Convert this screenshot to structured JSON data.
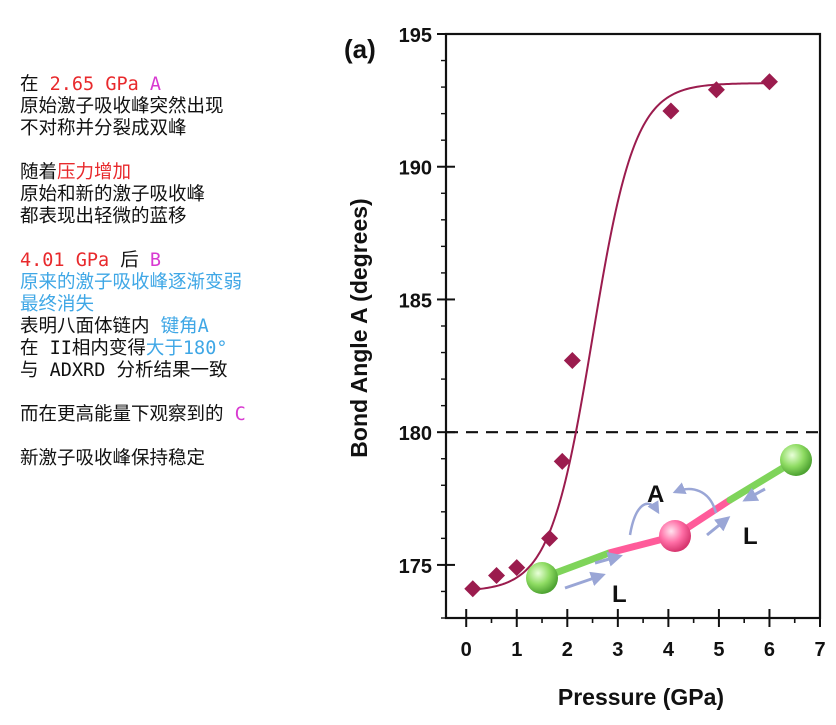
{
  "notes": {
    "p1": {
      "l1": {
        "pre": "在 ",
        "value": "2.65 GPa",
        "space": " ",
        "mark": "A"
      },
      "l2": "原始激子吸收峰突然出现",
      "l3": "不对称并分裂成双峰"
    },
    "p2": {
      "l1_pre": "随着",
      "l1_hl": "压力增加",
      "l2": "原始和新的激子吸收峰",
      "l3": "都表现出轻微的蓝移"
    },
    "p3": {
      "l1": {
        "value": "4.01 GPa",
        "mid": " 后 ",
        "mark": "B"
      },
      "l2": "原来的激子吸收峰逐渐变弱",
      "l3": "最终消失",
      "l4": {
        "pre": "表明八面体链内 ",
        "hl": "键角A"
      },
      "l5": {
        "pre": "在 II相内变得",
        "hl": "大于180°"
      },
      "l6": "与 ADXRD 分析结果一致"
    },
    "p4": {
      "l1_pre": "而在更高能量下观察到的 ",
      "mark": "C"
    },
    "p5": {
      "l1": "新激子吸收峰保持稳定"
    }
  },
  "colors": {
    "red": "#e8292c",
    "magenta": "#d83ad1",
    "blue": "#3fa7e6",
    "curve": "#9b1c4e",
    "marker": "#9b1c4e"
  },
  "chart_data": {
    "type": "scatter",
    "panel_label": "(a)",
    "xlabel": "Pressure (GPa)",
    "ylabel": "Bond Angle A (degrees)",
    "xlim": [
      -0.4,
      7
    ],
    "ylim": [
      173,
      195
    ],
    "xticks": [
      0,
      1,
      2,
      3,
      4,
      5,
      6,
      7
    ],
    "yticks": [
      175,
      180,
      185,
      190,
      195
    ],
    "reference_line": {
      "y": 180,
      "style": "dashed"
    },
    "points": [
      {
        "x": 0.13,
        "y": 174.1
      },
      {
        "x": 0.6,
        "y": 174.6
      },
      {
        "x": 1.0,
        "y": 174.9
      },
      {
        "x": 1.65,
        "y": 176.0
      },
      {
        "x": 1.9,
        "y": 178.9
      },
      {
        "x": 2.1,
        "y": 182.7
      },
      {
        "x": 4.05,
        "y": 192.1
      },
      {
        "x": 4.95,
        "y": 192.9
      },
      {
        "x": 6.0,
        "y": 193.2
      }
    ],
    "fit_curve": {
      "type": "sigmoid",
      "y_low": 174.0,
      "y_high": 193.15,
      "center": 2.5,
      "scale": 0.42,
      "x_range": [
        0.13,
        6.0
      ]
    },
    "inset": {
      "labels": [
        "A",
        "L",
        "L"
      ]
    }
  }
}
